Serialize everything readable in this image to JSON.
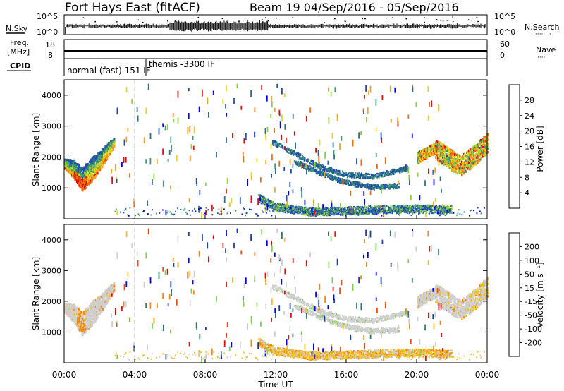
{
  "header": {
    "title": "Fort Hays East (fitACF)",
    "beam_info": "Beam 19  04/Sep/2016 - 05/Sep/2016"
  },
  "noise_panel": {
    "left_label": "N.Sky",
    "right_label": "N.Search",
    "right_legend": "·········",
    "y_ticks_left": [
      "10^5",
      "10^0"
    ],
    "y_ticks_right": [
      "10^5",
      "10^0"
    ]
  },
  "freq_panel": {
    "label_line1": "Freq.",
    "label_line2": "[MHz]",
    "right_label": "Nave",
    "right_legend": "····",
    "y_ticks_left": [
      "18",
      "8"
    ],
    "y_ticks_right": [
      "60",
      "0"
    ]
  },
  "cpid_panel": {
    "label": "CPID",
    "segments": [
      "normal (fast) 151 IF",
      "themis -3300 IF"
    ]
  },
  "colors": {
    "power": [
      "#0000ff",
      "#1f4fa6",
      "#2e6e8a",
      "#3f9a76",
      "#8ccf3a",
      "#e6d71a",
      "#f2a51a",
      "#f06d10",
      "#e01010"
    ],
    "velocity": [
      "#e01010",
      "#f04a10",
      "#f28a10",
      "#f2c01a",
      "#cfcfcf",
      "#cfcfcf",
      "#7fd04a",
      "#2e7a6e",
      "#1c3f9a",
      "#0000ff"
    ]
  },
  "chart_data": [
    {
      "type": "heatmap",
      "name": "power",
      "ylabel": "Slant Range [km]",
      "xlabel": "",
      "ylim": [
        0,
        4500
      ],
      "xlim": [
        0,
        24
      ],
      "y_ticks": [
        1000,
        2000,
        3000,
        4000
      ],
      "colorbar": {
        "label": "Power [dB]",
        "ticks": [
          4,
          8,
          12,
          16,
          20,
          24,
          28
        ],
        "range": [
          0,
          32
        ]
      },
      "features": [
        {
          "desc": "dense echo arc",
          "x_start": 0.0,
          "x_end": 2.8,
          "y_center_at": [
            [
              0.0,
              1800
            ],
            [
              0.5,
              1650
            ],
            [
              1.0,
              1300
            ],
            [
              1.5,
              1600
            ],
            [
              2.0,
              1900
            ],
            [
              2.5,
              2300
            ],
            [
              2.8,
              2500
            ]
          ]
        },
        {
          "desc": "upper arc",
          "x_start": 11.8,
          "x_end": 19.5,
          "y_center_at": [
            [
              11.8,
              2500
            ],
            [
              13.0,
              2150
            ],
            [
              14.5,
              1700
            ],
            [
              16.0,
              1450
            ],
            [
              17.5,
              1400
            ],
            [
              19.0,
              1600
            ],
            [
              19.5,
              1650
            ]
          ]
        },
        {
          "desc": "lower arc",
          "x_start": 13.0,
          "x_end": 19.0,
          "y_center_at": [
            [
              13.0,
              1900
            ],
            [
              14.5,
              1500
            ],
            [
              16.0,
              1200
            ],
            [
              17.5,
              1050
            ],
            [
              19.0,
              1100
            ]
          ]
        },
        {
          "desc": "evening arc",
          "x_start": 20.0,
          "x_end": 24.0,
          "y_center_at": [
            [
              20.0,
              2000
            ],
            [
              21.0,
              2300
            ],
            [
              22.0,
              1900
            ],
            [
              22.5,
              1750
            ],
            [
              23.3,
              2100
            ],
            [
              24.0,
              2500
            ]
          ]
        },
        {
          "desc": "near-range ionospheric echoes",
          "x_start": 11.0,
          "x_end": 22.0,
          "y_center_at": [
            [
              11.0,
              700
            ],
            [
              12.0,
              400
            ],
            [
              14.0,
              250
            ],
            [
              17.0,
              300
            ],
            [
              20.0,
              350
            ],
            [
              22.0,
              300
            ]
          ]
        }
      ]
    },
    {
      "type": "heatmap",
      "name": "velocity",
      "ylabel": "Slant Range [km]",
      "xlabel": "Time UT",
      "ylim": [
        0,
        4500
      ],
      "xlim": [
        0,
        24
      ],
      "y_ticks": [
        1000,
        2000,
        3000,
        4000
      ],
      "x_ticks": [
        "00:00",
        "04:00",
        "08:00",
        "12:00",
        "16:00",
        "20:00",
        "00:00"
      ],
      "colorbar": {
        "label": "Velocity [m s⁻¹]",
        "ticks": [
          -200,
          -100,
          -50,
          -15,
          15,
          50,
          100,
          200
        ]
      },
      "note": "same echo regions as power panel, predominantly low velocity (grey), with orange/red near 01:00 and mixed small patches"
    }
  ],
  "vline_time": "04:00"
}
